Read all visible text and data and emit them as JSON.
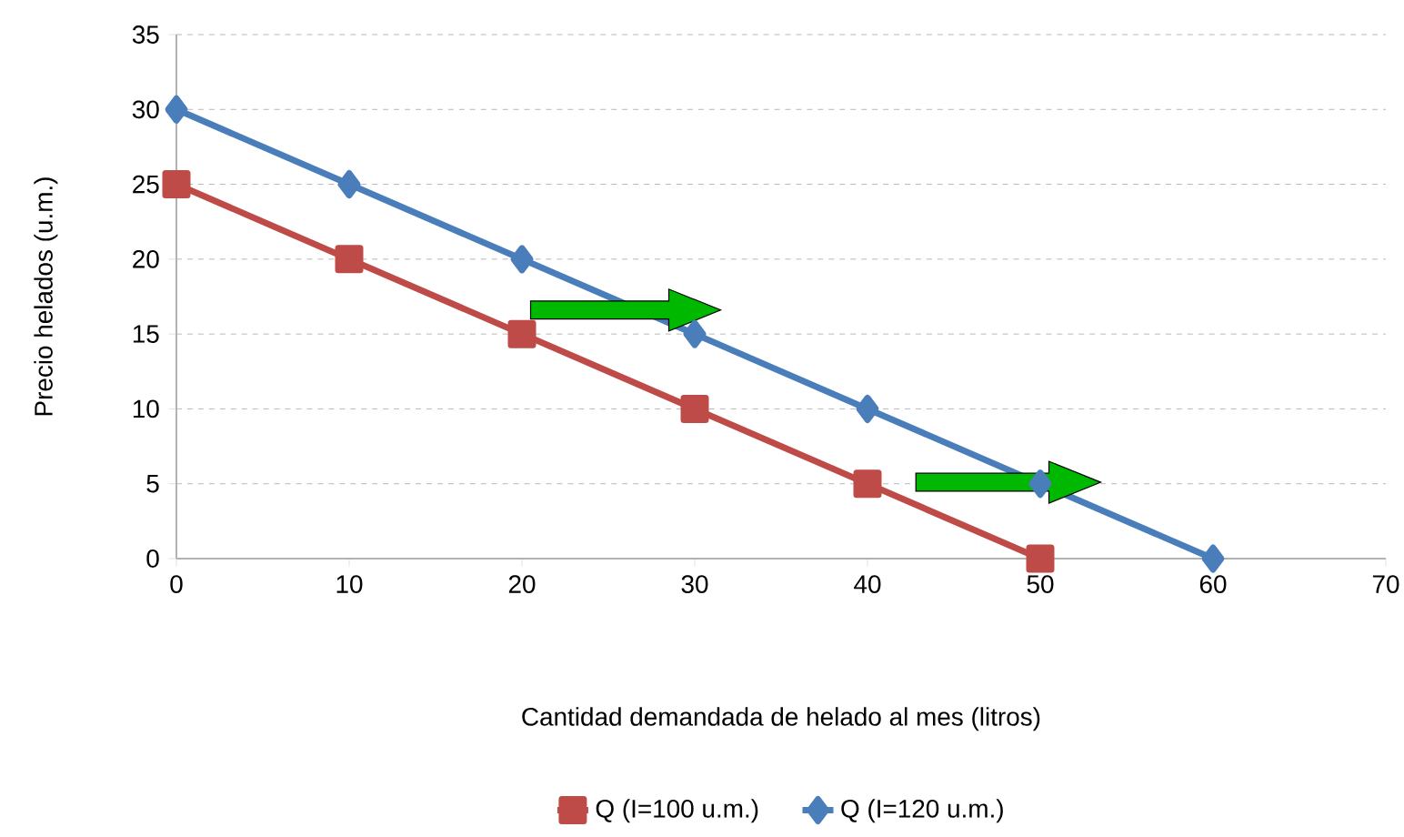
{
  "chart_data": {
    "type": "line",
    "xlabel": "Cantidad demandada de helado al mes (litros)",
    "ylabel": "Precio helados (u.m.)",
    "x": [
      0,
      10,
      20,
      30,
      40,
      50,
      60
    ],
    "series": [
      {
        "name": "Q (I=100 u.m.)",
        "color": "#be4b48",
        "marker": "square",
        "values": [
          25,
          20,
          15,
          10,
          5,
          0,
          null
        ]
      },
      {
        "name": "Q (I=120 u.m.)",
        "color": "#4a7ebb",
        "marker": "diamond",
        "values": [
          30,
          25,
          20,
          15,
          10,
          5,
          0
        ]
      }
    ],
    "xlim": [
      0,
      70
    ],
    "xticks": [
      0,
      10,
      20,
      30,
      40,
      50,
      60,
      70
    ],
    "ylim": [
      0,
      35
    ],
    "yticks": [
      0,
      5,
      10,
      15,
      20,
      25,
      30,
      35
    ],
    "grid": "y",
    "legend": "bottom",
    "line_style": "solid"
  }
}
